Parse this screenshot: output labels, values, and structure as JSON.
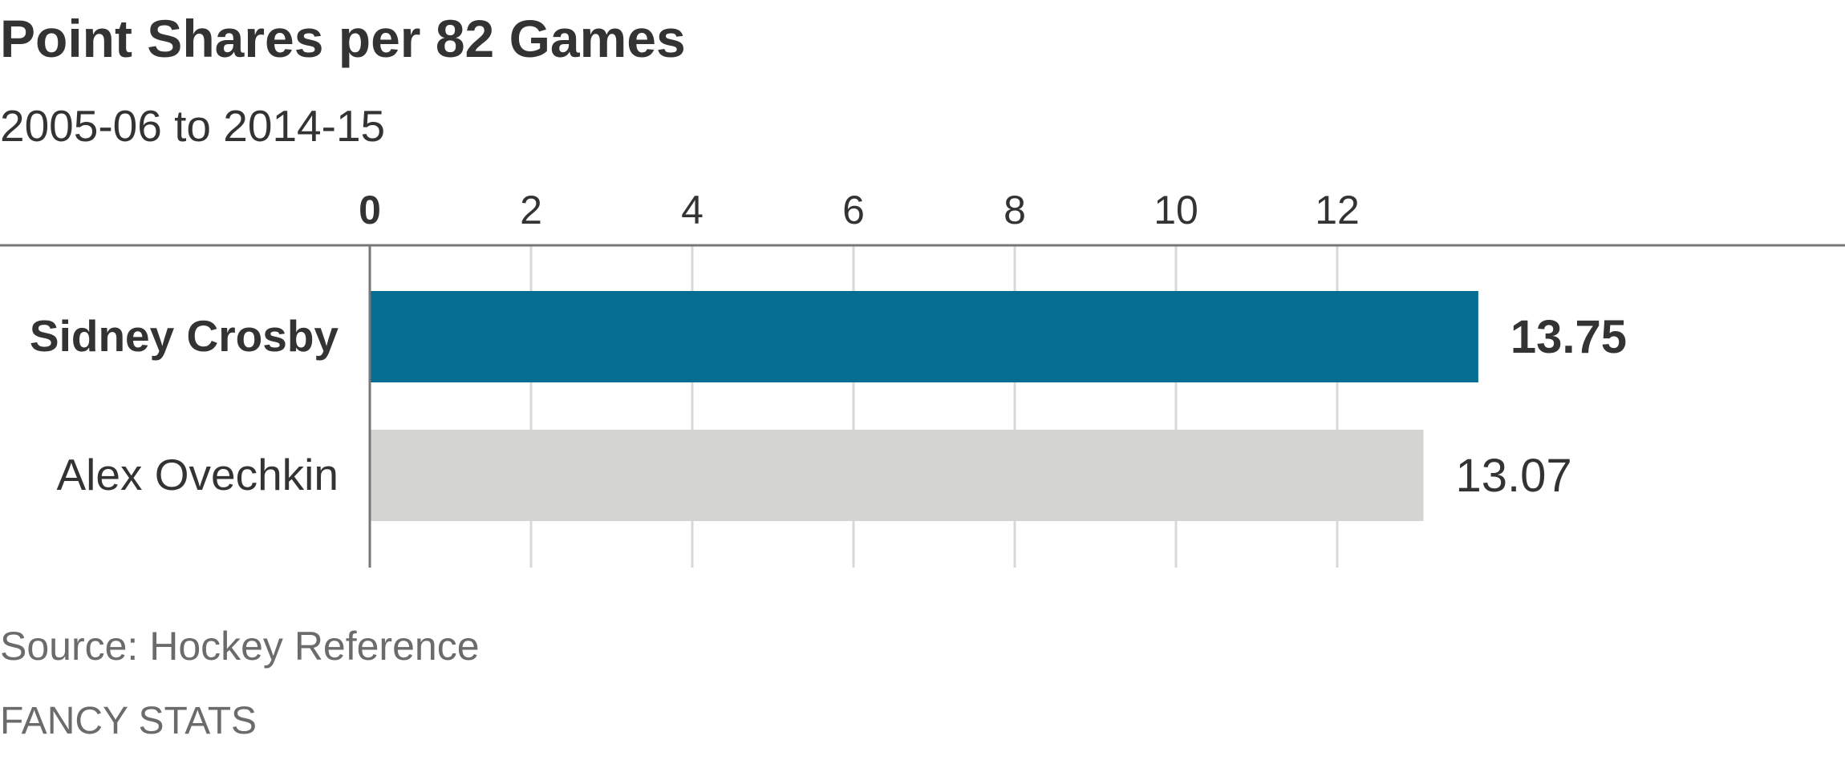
{
  "chart_data": {
    "type": "bar",
    "orientation": "horizontal",
    "title": "Point Shares per 82 Games",
    "subtitle": "2005-06 to 2014-15",
    "categories": [
      "Sidney Crosby",
      "Alex Ovechkin"
    ],
    "values": [
      13.75,
      13.07
    ],
    "value_labels": [
      "13.75",
      "13.07"
    ],
    "highlighted": "Sidney Crosby",
    "x_ticks": [
      0,
      2,
      4,
      6,
      8,
      10,
      12
    ],
    "xlim": [
      0,
      14
    ],
    "grid": true,
    "legend": "none",
    "colors": {
      "highlight": "#036e91",
      "default": "#d4d4d3",
      "axis": "#777777",
      "grid": "#d8d8d8",
      "text": "#333333",
      "muted": "#6b6b6b"
    }
  },
  "source": "Source: Hockey Reference",
  "credit": "FANCY STATS"
}
